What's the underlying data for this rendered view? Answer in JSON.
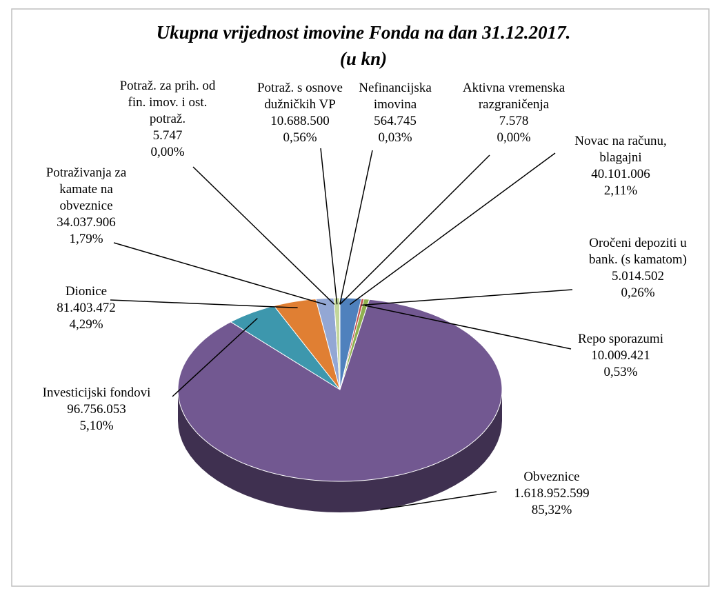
{
  "chart_data": {
    "type": "pie",
    "title": "Ukupna vrijednost imovine Fonda na dan 31.12.2017.",
    "subtitle": "(u kn)",
    "categories": [
      [
        "Novac na računu,",
        "blagajni"
      ],
      [
        "Oročeni depoziti u",
        "bank. (s kamatom)"
      ],
      [
        "Repo sporazumi"
      ],
      [
        "Obveznice"
      ],
      [
        "Investicijski fondovi"
      ],
      [
        "Dionice"
      ],
      [
        "Potraživanja za",
        "kamate na",
        "obveznice"
      ],
      [
        "Potraž. za prih. od",
        "fin. imov. i ost.",
        "potraž."
      ],
      [
        "Potraž. s osnove",
        "dužničkih VP"
      ],
      [
        "Nefinancijska",
        "imovina"
      ],
      [
        "Aktivna vremenska",
        "razgraničenja"
      ]
    ],
    "values": [
      40101006,
      5014502,
      10009421,
      1618952599,
      96756053,
      81403472,
      34037906,
      5747,
      10688500,
      564745,
      7578
    ],
    "value_labels": [
      "40.101.006",
      "5.014.502",
      "10.009.421",
      "1.618.952.599",
      "96.756.053",
      "81.403.472",
      "34.037.906",
      "5.747",
      "10.688.500",
      "564.745",
      "7.578"
    ],
    "percent_labels": [
      "2,11%",
      "0,26%",
      "0,53%",
      "85,32%",
      "5,10%",
      "4,29%",
      "1,79%",
      "0,00%",
      "0,56%",
      "0,03%",
      "0,00%"
    ],
    "colors": [
      "#4f81bd",
      "#c0504d",
      "#8fb04f",
      "#725891",
      "#3d97ad",
      "#e07f33",
      "#93a7d4",
      "#d9b3b2",
      "#c3d69b",
      "#b3a2c7",
      "#93cddd"
    ]
  }
}
